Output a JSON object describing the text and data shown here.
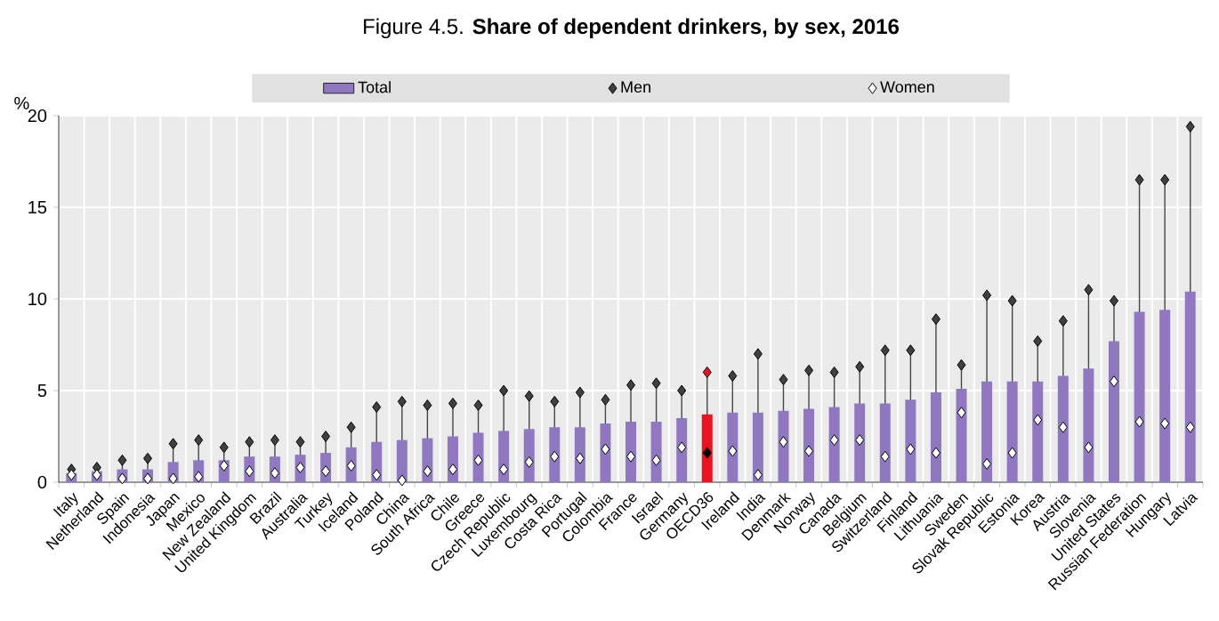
{
  "chart_data": {
    "type": "bar",
    "title": "Figure 4.5. **Share of dependent drinkers, by sex, 2016**",
    "ylabel": "%",
    "categories": [
      "Italy",
      "Netherland",
      "Spain",
      "Indonesia",
      "Japan",
      "Mexico",
      "New Zealand",
      "United Kingdom",
      "Brazil",
      "Australia",
      "Turkey",
      "Iceland",
      "Poland",
      "China",
      "South Africa",
      "Chile",
      "Greece",
      "Czech Republic",
      "Luxembourg",
      "Costa Rica",
      "Portugal",
      "Colombia",
      "France",
      "Israel",
      "Germany",
      "OECD36",
      "Ireland",
      "India",
      "Denmark",
      "Norway",
      "Canada",
      "Belgium",
      "Switzerland",
      "Finland",
      "Lithuania",
      "Sweden",
      "Slovak Republic",
      "Estonia",
      "Korea",
      "Austria",
      "Slovenia",
      "United States",
      "Russian Federation",
      "Hungary",
      "Latvia"
    ],
    "series": [
      {
        "name": "Total",
        "color": "#8f78c0",
        "colors": [
          "#8f78c0",
          "#8f78c0",
          "#8f78c0",
          "#8f78c0",
          "#8f78c0",
          "#8f78c0",
          "#8f78c0",
          "#8f78c0",
          "#8f78c0",
          "#8f78c0",
          "#8f78c0",
          "#8f78c0",
          "#8f78c0",
          "#8f78c0",
          "#8f78c0",
          "#8f78c0",
          "#8f78c0",
          "#8f78c0",
          "#8f78c0",
          "#8f78c0",
          "#8f78c0",
          "#8f78c0",
          "#8f78c0",
          "#8f78c0",
          "#8f78c0",
          "#e8141f",
          "#8f78c0",
          "#8f78c0",
          "#8f78c0",
          "#8f78c0",
          "#8f78c0",
          "#8f78c0",
          "#8f78c0",
          "#8f78c0",
          "#8f78c0",
          "#8f78c0",
          "#8f78c0",
          "#8f78c0",
          "#8f78c0",
          "#8f78c0",
          "#8f78c0",
          "#8f78c0",
          "#8f78c0",
          "#8f78c0",
          "#8f78c0"
        ],
        "values": [
          0.5,
          0.6,
          0.7,
          0.7,
          1.1,
          1.2,
          1.2,
          1.4,
          1.4,
          1.5,
          1.6,
          1.9,
          2.2,
          2.3,
          2.4,
          2.5,
          2.7,
          2.8,
          2.9,
          3.0,
          3.0,
          3.2,
          3.3,
          3.3,
          3.5,
          3.7,
          3.8,
          3.8,
          3.9,
          4.0,
          4.1,
          4.3,
          4.3,
          4.5,
          4.9,
          5.1,
          5.5,
          5.5,
          5.5,
          5.8,
          6.2,
          7.7,
          9.3,
          9.4,
          10.4
        ]
      },
      {
        "name": "Men",
        "type": "scatter",
        "marker": "diamond",
        "color": "#404040",
        "colors": [
          "#404040",
          "#404040",
          "#404040",
          "#404040",
          "#404040",
          "#404040",
          "#404040",
          "#404040",
          "#404040",
          "#404040",
          "#404040",
          "#404040",
          "#404040",
          "#404040",
          "#404040",
          "#404040",
          "#404040",
          "#404040",
          "#404040",
          "#404040",
          "#404040",
          "#404040",
          "#404040",
          "#404040",
          "#404040",
          "#e8141f",
          "#404040",
          "#404040",
          "#404040",
          "#404040",
          "#404040",
          "#404040",
          "#404040",
          "#404040",
          "#404040",
          "#404040",
          "#404040",
          "#404040",
          "#404040",
          "#404040",
          "#404040",
          "#404040",
          "#404040",
          "#404040",
          "#404040"
        ],
        "values": [
          0.7,
          0.8,
          1.2,
          1.3,
          2.1,
          2.3,
          1.9,
          2.2,
          2.3,
          2.2,
          2.5,
          3.0,
          4.1,
          4.4,
          4.2,
          4.3,
          4.2,
          5.0,
          4.7,
          4.4,
          4.9,
          4.5,
          5.3,
          5.4,
          5.0,
          6.0,
          5.8,
          7.0,
          5.6,
          6.1,
          6.0,
          6.3,
          7.2,
          7.2,
          8.9,
          6.4,
          10.2,
          9.9,
          7.7,
          8.8,
          10.5,
          9.9,
          16.5,
          16.5,
          19.4
        ]
      },
      {
        "name": "Women",
        "type": "scatter",
        "marker": "diamond",
        "color": "#ffffff",
        "colors": [
          "#ffffff",
          "#ffffff",
          "#ffffff",
          "#ffffff",
          "#ffffff",
          "#ffffff",
          "#ffffff",
          "#ffffff",
          "#ffffff",
          "#ffffff",
          "#ffffff",
          "#ffffff",
          "#ffffff",
          "#ffffff",
          "#ffffff",
          "#ffffff",
          "#ffffff",
          "#ffffff",
          "#ffffff",
          "#ffffff",
          "#ffffff",
          "#ffffff",
          "#ffffff",
          "#ffffff",
          "#ffffff",
          "#000000",
          "#ffffff",
          "#ffffff",
          "#ffffff",
          "#ffffff",
          "#ffffff",
          "#ffffff",
          "#ffffff",
          "#ffffff",
          "#ffffff",
          "#ffffff",
          "#ffffff",
          "#ffffff",
          "#ffffff",
          "#ffffff",
          "#ffffff",
          "#ffffff",
          "#ffffff",
          "#ffffff",
          "#ffffff"
        ],
        "values": [
          0.4,
          0.4,
          0.2,
          0.2,
          0.2,
          0.3,
          0.9,
          0.6,
          0.5,
          0.8,
          0.6,
          0.9,
          0.4,
          0.1,
          0.6,
          0.7,
          1.2,
          0.7,
          1.1,
          1.4,
          1.3,
          1.8,
          1.4,
          1.2,
          1.9,
          1.6,
          1.7,
          0.4,
          2.2,
          1.7,
          2.3,
          2.3,
          1.4,
          1.8,
          1.6,
          3.8,
          1.0,
          1.6,
          3.4,
          3.0,
          1.9,
          5.5,
          3.3,
          3.2,
          3.0
        ]
      }
    ],
    "ylim": [
      0,
      20
    ],
    "yticks": [
      0,
      5,
      10,
      15,
      20
    ],
    "grid": true,
    "legend": "top"
  }
}
